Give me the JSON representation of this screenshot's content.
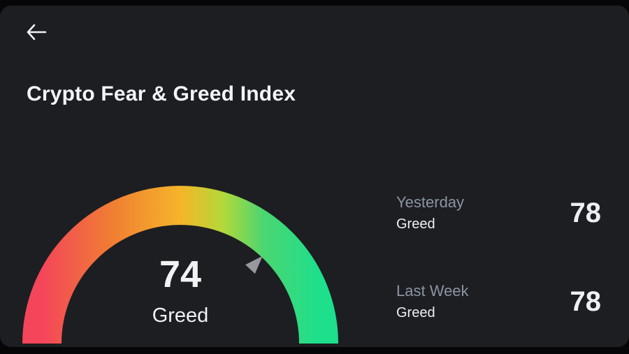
{
  "header": {
    "title": "Crypto Fear & Greed Index"
  },
  "chart_data": {
    "type": "gauge",
    "title": "Crypto Fear & Greed Index",
    "value": 74,
    "value_label": "Greed",
    "min": 0,
    "max": 100,
    "gradient_colors": [
      "#f4455a",
      "#f07d33",
      "#f5b52a",
      "#b5d838",
      "#4cd671",
      "#1ddf8c"
    ],
    "pointer_color": "#97989d"
  },
  "stats": [
    {
      "period": "Yesterday",
      "label": "Greed",
      "value": "78"
    },
    {
      "period": "Last Week",
      "label": "Greed",
      "value": "78"
    }
  ],
  "colors": {
    "background": "#060608",
    "card": "#1d1e22",
    "text_primary": "#eef0f3",
    "text_secondary": "#8d93a1"
  }
}
